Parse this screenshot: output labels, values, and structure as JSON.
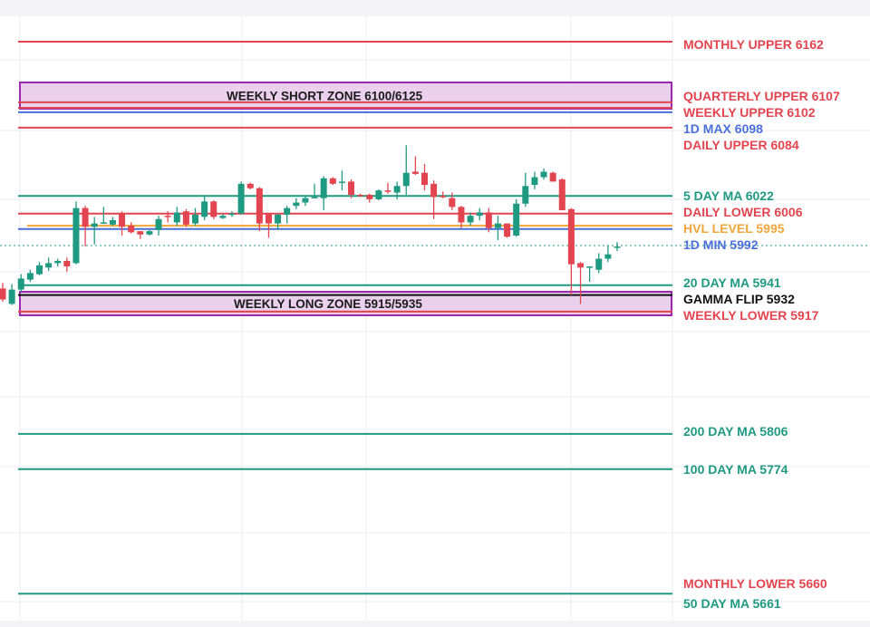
{
  "chart_data": {
    "type": "candlestick",
    "title": "",
    "xlabel": "",
    "ylabel": "",
    "ylim": [
      5640,
      6175
    ],
    "grid": true,
    "current_price": 5977,
    "colors": {
      "up": "#1f9a82",
      "down": "#e2454f",
      "red": "#e2454f",
      "green": "#1f9a82",
      "blue": "#4b6fd9",
      "orange": "#f0a63a",
      "black": "#111111",
      "zone_border": "#9c27b0",
      "zone_fill": "#ead0ec"
    },
    "candles": [
      [
        5938,
        5943,
        5926,
        5928
      ],
      [
        5924,
        5942,
        5923,
        5937
      ],
      [
        5937,
        5951,
        5935,
        5947
      ],
      [
        5946,
        5955,
        5944,
        5952
      ],
      [
        5951,
        5962,
        5950,
        5959
      ],
      [
        5957,
        5966,
        5954,
        5961
      ],
      [
        5961,
        5965,
        5958,
        5963
      ],
      [
        5963,
        5966,
        5953,
        5958
      ],
      [
        5961,
        6017,
        5960,
        6011
      ],
      [
        6011,
        6013,
        5976,
        5994
      ],
      [
        5994,
        6003,
        5978,
        5997
      ],
      [
        5998,
        6012,
        5997,
        5998
      ],
      [
        5996,
        6003,
        5995,
        6000
      ],
      [
        6006,
        6008,
        5986,
        5994
      ],
      [
        5995,
        5998,
        5988,
        5989
      ],
      [
        5990,
        5990,
        5983,
        5987
      ],
      [
        5987,
        5991,
        5986,
        5990
      ],
      [
        5991,
        6004,
        5986,
        6001
      ],
      [
        6004,
        6008,
        5998,
        6003
      ],
      [
        5998,
        6012,
        5995,
        6007
      ],
      [
        6008,
        6010,
        5994,
        5996
      ],
      [
        5997,
        6011,
        5995,
        6005
      ],
      [
        6003,
        6022,
        6000,
        6017
      ],
      [
        6017,
        6018,
        6001,
        6003
      ],
      [
        6002,
        6006,
        6001,
        6004
      ],
      [
        6006,
        6008,
        6003,
        6006
      ],
      [
        6006,
        6035,
        6005,
        6033
      ],
      [
        6033,
        6034,
        6028,
        6029
      ],
      [
        6029,
        6030,
        5990,
        5997
      ],
      [
        6006,
        6006,
        5984,
        5997
      ],
      [
        5997,
        6006,
        5991,
        6005
      ],
      [
        6005,
        6013,
        5997,
        6011
      ],
      [
        6013,
        6020,
        6010,
        6016
      ],
      [
        6016,
        6022,
        6013,
        6020
      ],
      [
        6020,
        6033,
        6020,
        6021
      ],
      [
        6020,
        6040,
        6009,
        6038
      ],
      [
        6038,
        6039,
        6032,
        6033
      ],
      [
        6034,
        6045,
        6027,
        6035
      ],
      [
        6035,
        6037,
        6020,
        6023
      ],
      [
        6023,
        6024,
        6021,
        6022
      ],
      [
        6023,
        6024,
        6016,
        6019
      ],
      [
        6019,
        6028,
        6018,
        6027
      ],
      [
        6027,
        6034,
        6024,
        6026
      ],
      [
        6025,
        6035,
        6019,
        6031
      ],
      [
        6031,
        6068,
        6023,
        6043
      ],
      [
        6044,
        6058,
        6041,
        6042
      ],
      [
        6043,
        6051,
        6027,
        6032
      ],
      [
        6033,
        6036,
        6001,
        6021
      ],
      [
        6022,
        6026,
        6020,
        6021
      ],
      [
        6020,
        6025,
        6009,
        6012
      ],
      [
        6012,
        6013,
        5993,
        5998
      ],
      [
        5998,
        6007,
        5995,
        6004
      ],
      [
        6004,
        6011,
        6000,
        6007
      ],
      [
        6007,
        6011,
        5989,
        5993
      ],
      [
        5993,
        6004,
        5982,
        5997
      ],
      [
        5997,
        5997,
        5984,
        5985
      ],
      [
        5986,
        6019,
        5985,
        6015
      ],
      [
        6015,
        6043,
        6012,
        6031
      ],
      [
        6032,
        6044,
        6028,
        6039
      ],
      [
        6039,
        6047,
        6037,
        6044
      ],
      [
        6043,
        6044,
        6035,
        6035
      ],
      [
        6037,
        6038,
        6009,
        6009
      ],
      [
        6010,
        6011,
        5932,
        5960
      ],
      [
        5961,
        5962,
        5924,
        5957
      ],
      [
        5957,
        5958,
        5944,
        5958
      ],
      [
        5955,
        5970,
        5952,
        5965
      ],
      [
        5965,
        5977,
        5962,
        5969
      ],
      [
        5976,
        5980,
        5972,
        5976
      ]
    ],
    "candle_fields": [
      "open",
      "high",
      "low",
      "close"
    ],
    "zones": [
      {
        "label": "WEEKLY SHORT ZONE 6100/6125",
        "low": 6100,
        "high": 6125
      },
      {
        "label": "WEEKLY LONG ZONE 5915/5935",
        "low": 5915,
        "high": 5935
      }
    ],
    "levels": [
      {
        "label": "MONTHLY UPPER 6162",
        "value": 6162,
        "color": "red"
      },
      {
        "label": "QUARTERLY UPPER 6107",
        "value": 6107,
        "color": "red"
      },
      {
        "label": "WEEKLY UPPER 6102",
        "value": 6102,
        "color": "red"
      },
      {
        "label": "1D MAX 6098",
        "value": 6098,
        "color": "blue"
      },
      {
        "label": "DAILY UPPER 6084",
        "value": 6084,
        "color": "red"
      },
      {
        "label": "5 DAY MA 6022",
        "value": 6022,
        "color": "green"
      },
      {
        "label": "DAILY LOWER 6006",
        "value": 6006,
        "color": "red"
      },
      {
        "label": "HVL LEVEL 5995",
        "value": 5995,
        "color": "orange"
      },
      {
        "label": "1D MIN 5992",
        "value": 5992,
        "color": "blue"
      },
      {
        "label": "20 DAY MA 5941",
        "value": 5941,
        "color": "green"
      },
      {
        "label": "GAMMA FLIP 5932",
        "value": 5932,
        "color": "black"
      },
      {
        "label": "WEEKLY LOWER 5917",
        "value": 5917,
        "color": "red"
      },
      {
        "label": "200 DAY MA 5806",
        "value": 5806,
        "color": "green"
      },
      {
        "label": "100 DAY MA 5774",
        "value": 5774,
        "color": "green"
      },
      {
        "label": "MONTHLY LOWER 5660",
        "value": 5660,
        "color": "red"
      },
      {
        "label": "50 DAY MA 5661",
        "value": 5661,
        "color": "green"
      }
    ]
  }
}
